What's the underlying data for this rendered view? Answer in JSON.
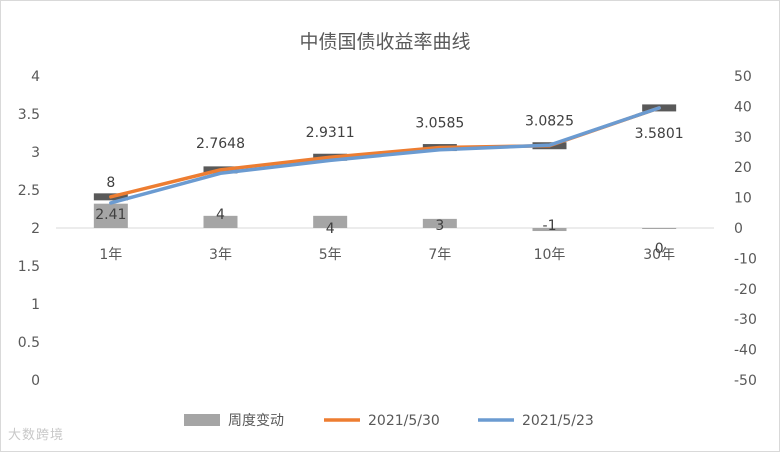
{
  "chart_data": {
    "type": "bar+line",
    "title": "中债国债收益率曲线",
    "categories": [
      "1年",
      "3年",
      "5年",
      "7年",
      "10年",
      "30年"
    ],
    "y_left": {
      "min": 0,
      "max": 4,
      "step": 0.5,
      "ticks": [
        "0",
        "0.5",
        "1",
        "1.5",
        "2",
        "2.5",
        "3",
        "3.5",
        "4"
      ]
    },
    "y_right": {
      "min": -50,
      "max": 50,
      "step": 10,
      "ticks": [
        "-50",
        "-40",
        "-30",
        "-20",
        "-10",
        "0",
        "10",
        "20",
        "30",
        "40",
        "50"
      ]
    },
    "series": [
      {
        "name": "周度变动",
        "kind": "bar",
        "axis": "right",
        "color": "#a5a5a5",
        "values": [
          8,
          4,
          4,
          3,
          -1,
          0
        ],
        "labels": [
          "8",
          "4",
          "4",
          "3",
          "-1",
          "0"
        ]
      },
      {
        "name": "2021/5/30",
        "kind": "line",
        "axis": "left",
        "color": "#ed7d31",
        "values": [
          2.41,
          2.7648,
          2.9311,
          3.0585,
          3.0825,
          3.5801
        ],
        "labels": [
          "2.41",
          "2.7648",
          "2.9311",
          "3.0585",
          "3.0825",
          "3.5801"
        ]
      },
      {
        "name": "2021/5/23",
        "kind": "line",
        "axis": "left",
        "color": "#6b9bd1",
        "values": [
          2.33,
          2.72,
          2.89,
          3.03,
          3.09,
          3.58
        ]
      }
    ],
    "grid": false,
    "legend": "bottom"
  },
  "watermark": "大数跨境"
}
